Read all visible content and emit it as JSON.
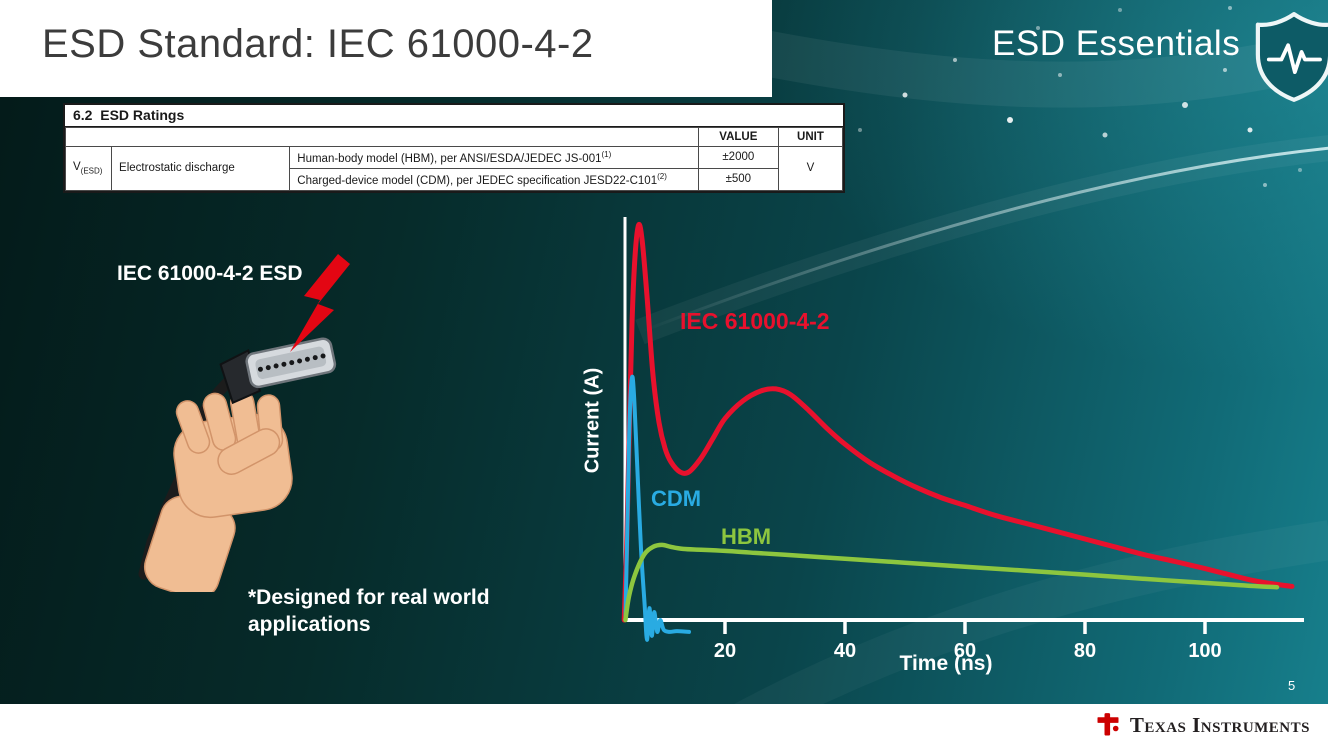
{
  "slide": {
    "title": "ESD Standard: IEC 61000-4-2",
    "series_brand": "ESD Essentials",
    "page_number": "5",
    "footer_logo_text": "Texas Instruments",
    "footer_logo_color": "#cc0000"
  },
  "ratings_table": {
    "section_heading": "6.2  ESD Ratings",
    "col_headers": [
      "VALUE",
      "UNIT"
    ],
    "row_symbol_base": "V",
    "row_symbol_sub": "(ESD)",
    "row_label": "Electrostatic discharge",
    "unit": "V",
    "rows": [
      {
        "desc": "Human-body model (HBM), per ANSI/ESDA/JEDEC JS-001",
        "sup": "(1)",
        "value": "±2000"
      },
      {
        "desc": "Charged-device model (CDM), per JEDEC specification JESD22-C101",
        "sup": "(2)",
        "value": "±500"
      }
    ]
  },
  "illustration": {
    "caption": "IEC 61000-4-2 ESD",
    "note": "*Designed for real world applications",
    "bolt_color": "#e30613"
  },
  "chart_data": {
    "type": "line",
    "title": "",
    "xlabel": "Time (ns)",
    "ylabel": "Current (A)",
    "x_ticks": [
      20,
      40,
      60,
      80,
      100
    ],
    "xlim": [
      0,
      115
    ],
    "ylim": [
      -0.05,
      1.05
    ],
    "grid": false,
    "legend_position": "inline-labels",
    "axis_color": "#ffffff",
    "series": [
      {
        "name": "IEC 61000-4-2",
        "color": "#e8112d",
        "points": [
          [
            3.2,
            0
          ],
          [
            3.6,
            0.18
          ],
          [
            4,
            0.45
          ],
          [
            4.5,
            0.75
          ],
          [
            5,
            0.92
          ],
          [
            5.6,
            1.0
          ],
          [
            6.2,
            0.96
          ],
          [
            7,
            0.82
          ],
          [
            8,
            0.62
          ],
          [
            9,
            0.5
          ],
          [
            10,
            0.435
          ],
          [
            11,
            0.4
          ],
          [
            12.5,
            0.375
          ],
          [
            14,
            0.375
          ],
          [
            16,
            0.41
          ],
          [
            18,
            0.46
          ],
          [
            20,
            0.51
          ],
          [
            23,
            0.555
          ],
          [
            26,
            0.58
          ],
          [
            28.5,
            0.585
          ],
          [
            31,
            0.57
          ],
          [
            34,
            0.53
          ],
          [
            37,
            0.485
          ],
          [
            40,
            0.445
          ],
          [
            44,
            0.4
          ],
          [
            48,
            0.365
          ],
          [
            52,
            0.335
          ],
          [
            56,
            0.31
          ],
          [
            60,
            0.29
          ],
          [
            65,
            0.265
          ],
          [
            70,
            0.245
          ],
          [
            75,
            0.225
          ],
          [
            80,
            0.205
          ],
          [
            85,
            0.185
          ],
          [
            90,
            0.165
          ],
          [
            95,
            0.148
          ],
          [
            100,
            0.13
          ],
          [
            104,
            0.115
          ],
          [
            108,
            0.1
          ],
          [
            112,
            0.09
          ],
          [
            114.5,
            0.085
          ]
        ]
      },
      {
        "name": "CDM",
        "color": "#29abe2",
        "points": [
          [
            3.4,
            0
          ],
          [
            3.7,
            0.22
          ],
          [
            4.0,
            0.45
          ],
          [
            4.3,
            0.58
          ],
          [
            4.6,
            0.615
          ],
          [
            4.9,
            0.55
          ],
          [
            5.4,
            0.38
          ],
          [
            6.0,
            0.18
          ],
          [
            6.6,
            0.04
          ],
          [
            7.0,
            -0.05
          ],
          [
            7.4,
            0.03
          ],
          [
            7.8,
            -0.04
          ],
          [
            8.2,
            0.02
          ],
          [
            8.7,
            -0.03
          ],
          [
            9.2,
            0
          ],
          [
            9.8,
            -0.025
          ],
          [
            10.8,
            -0.03
          ],
          [
            12,
            -0.028
          ],
          [
            14,
            -0.03
          ]
        ]
      },
      {
        "name": "HBM",
        "color": "#8dc63f",
        "points": [
          [
            3.4,
            0
          ],
          [
            4,
            0.06
          ],
          [
            5,
            0.115
          ],
          [
            6.5,
            0.165
          ],
          [
            8,
            0.185
          ],
          [
            9.5,
            0.19
          ],
          [
            11,
            0.185
          ],
          [
            13,
            0.18
          ],
          [
            16,
            0.178
          ],
          [
            20,
            0.175
          ],
          [
            25,
            0.17
          ],
          [
            30,
            0.165
          ],
          [
            40,
            0.155
          ],
          [
            50,
            0.145
          ],
          [
            60,
            0.135
          ],
          [
            70,
            0.125
          ],
          [
            80,
            0.115
          ],
          [
            90,
            0.104
          ],
          [
            100,
            0.094
          ],
          [
            106,
            0.088
          ],
          [
            112,
            0.083
          ]
        ]
      }
    ]
  }
}
